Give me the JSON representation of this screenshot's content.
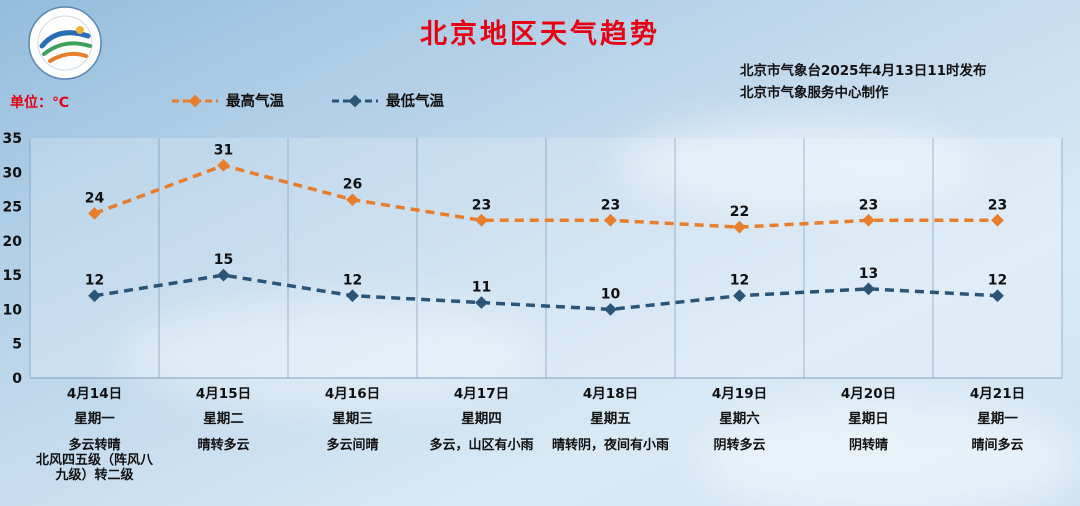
{
  "title": "北京地区天气趋势",
  "issue_info": {
    "line1": "北京市气象台2025年4月13日11时发布",
    "line2": "北京市气象服务中心制作"
  },
  "unit_label": "单位：℃",
  "legend": [
    {
      "label": "最高气温",
      "color": "#e87d2b"
    },
    {
      "label": "最低气温",
      "color": "#2a5578"
    }
  ],
  "chart_data": {
    "type": "line",
    "title": "北京地区天气趋势",
    "ylabel": "℃",
    "ylim": [
      0,
      35
    ],
    "ytick_step": 5,
    "grid": "vertical-column-separators",
    "legend_position": "top-left",
    "categories": [
      {
        "date": "4月14日",
        "weekday": "星期一",
        "weather": [
          "多云转晴",
          "北风四五级（阵风八",
          "九级）转二级"
        ]
      },
      {
        "date": "4月15日",
        "weekday": "星期二",
        "weather": [
          "晴转多云"
        ]
      },
      {
        "date": "4月16日",
        "weekday": "星期三",
        "weather": [
          "多云间晴"
        ]
      },
      {
        "date": "4月17日",
        "weekday": "星期四",
        "weather": [
          "多云，山区有小雨"
        ]
      },
      {
        "date": "4月18日",
        "weekday": "星期五",
        "weather": [
          "晴转阴，夜间有小雨"
        ]
      },
      {
        "date": "4月19日",
        "weekday": "星期六",
        "weather": [
          "阴转多云"
        ]
      },
      {
        "date": "4月20日",
        "weekday": "星期日",
        "weather": [
          "阴转晴"
        ]
      },
      {
        "date": "4月21日",
        "weekday": "星期一",
        "weather": [
          "晴间多云"
        ]
      }
    ],
    "series": [
      {
        "name": "最高气温",
        "color": "#e87d2b",
        "values": [
          24,
          31,
          26,
          23,
          23,
          22,
          23,
          23
        ]
      },
      {
        "name": "最低气温",
        "color": "#2a5578",
        "values": [
          12,
          15,
          12,
          11,
          10,
          12,
          13,
          12
        ]
      }
    ]
  }
}
